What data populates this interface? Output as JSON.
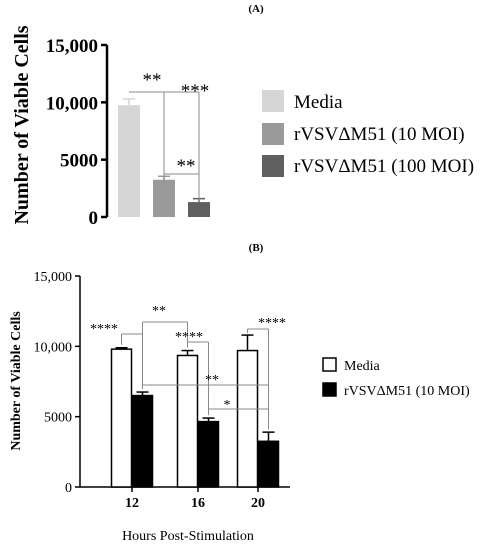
{
  "chart_data": [
    {
      "panel": "(A)",
      "type": "bar",
      "ylabel": "Number of Viable Cells",
      "ylim": [
        0,
        15000
      ],
      "yticks": [
        "0",
        "5000",
        "10,000",
        "15,000"
      ],
      "ytick_values": [
        0,
        5000,
        10000,
        15000
      ],
      "legend_position": "right",
      "categories": [
        "Media",
        "rVSVΔM51 (10 MOI)",
        "rVSVΔM51 (100 MOI)"
      ],
      "values": [
        9750,
        3250,
        1300
      ],
      "errors": [
        550,
        300,
        300
      ],
      "colors": [
        "#d6d6d6",
        "#9a9a9a",
        "#5f5f5f"
      ],
      "significance": [
        {
          "from": 0,
          "to": 1,
          "label": "**"
        },
        {
          "from": 0,
          "to": 2,
          "label": "***"
        },
        {
          "from": 1,
          "to": 2,
          "label": "**"
        }
      ]
    },
    {
      "panel": "(B)",
      "type": "bar",
      "xlabel": "Hours Post-Stimulation",
      "ylabel": "Number of Viable Cells",
      "ylim": [
        0,
        15000
      ],
      "yticks": [
        "0",
        "5000",
        "10,000",
        "15,000"
      ],
      "ytick_values": [
        0,
        5000,
        10000,
        15000
      ],
      "legend_position": "right",
      "categories": [
        "12",
        "16",
        "20"
      ],
      "series": [
        {
          "name": "Media",
          "values": [
            9800,
            9350,
            9700
          ],
          "errors": [
            100,
            350,
            1100
          ],
          "color": "#ffffff"
        },
        {
          "name": "rVSVΔM51 (10 MOI)",
          "values": [
            6500,
            4650,
            3250
          ],
          "errors": [
            250,
            250,
            650
          ],
          "color": "#000000"
        }
      ],
      "significance": [
        {
          "from": [
            0,
            0
          ],
          "to": [
            0,
            1
          ],
          "label": "****"
        },
        {
          "from": [
            0,
            1
          ],
          "to": [
            1,
            0
          ],
          "label": "**"
        },
        {
          "from": [
            1,
            0
          ],
          "to": [
            1,
            1
          ],
          "label": "****"
        },
        {
          "from": [
            2,
            0
          ],
          "to": [
            2,
            1
          ],
          "label": "****"
        },
        {
          "from": [
            0,
            1
          ],
          "to": [
            2,
            1
          ],
          "label": "**"
        },
        {
          "from": [
            1,
            1
          ],
          "to": [
            2,
            1
          ],
          "label": "*"
        }
      ]
    }
  ]
}
